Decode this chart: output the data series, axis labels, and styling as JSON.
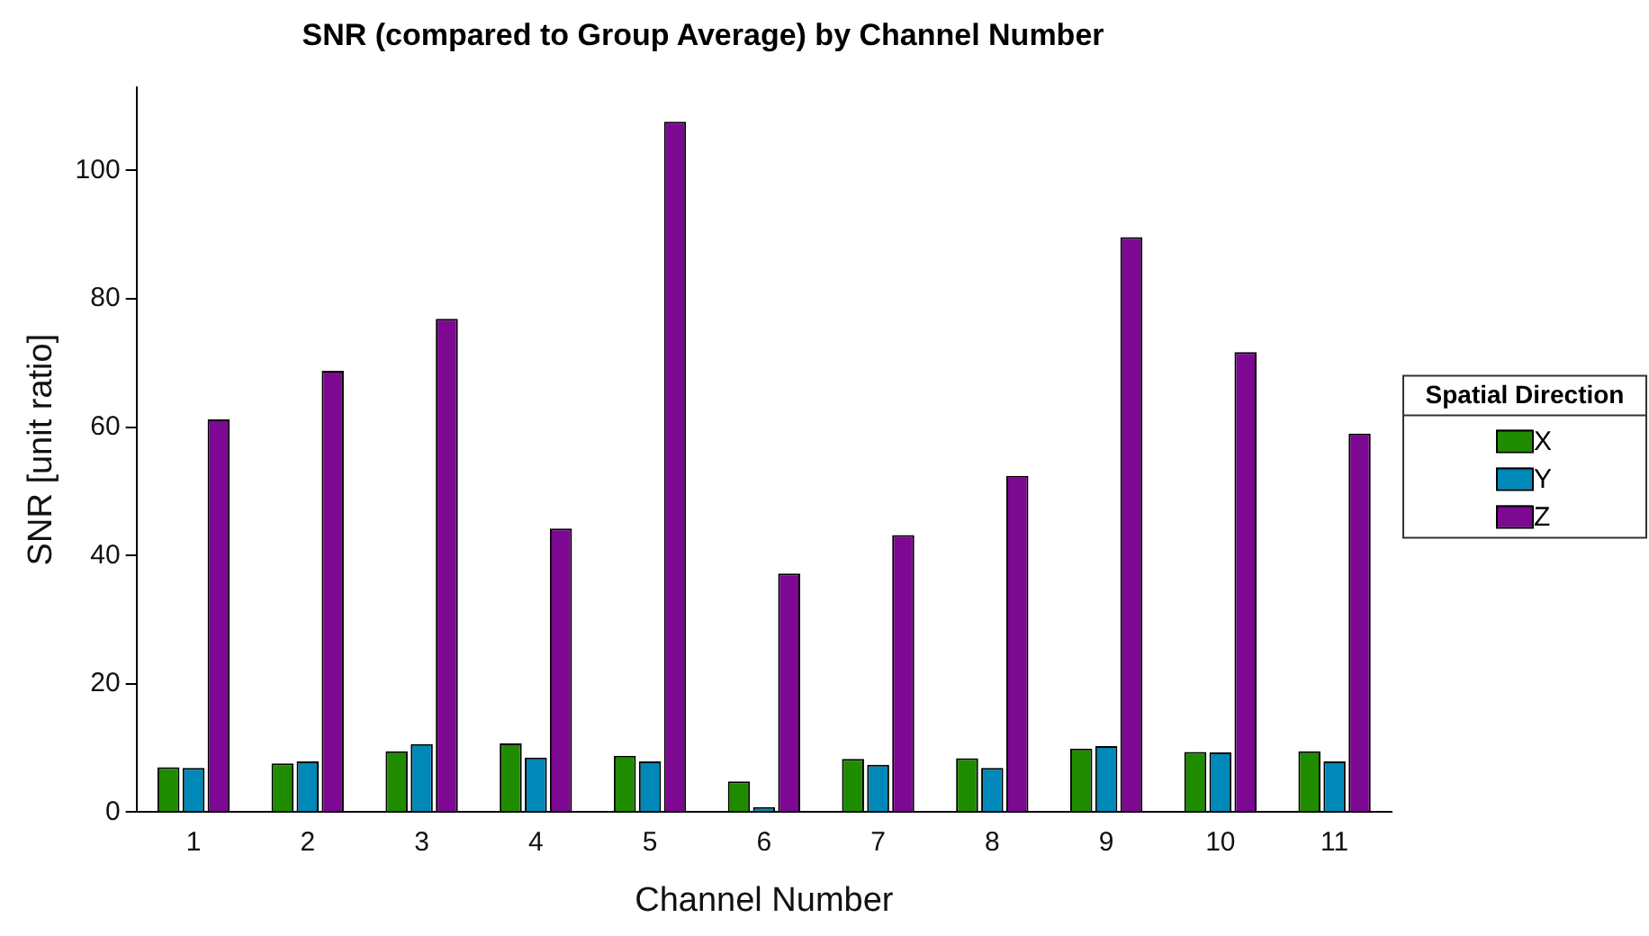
{
  "chart_data": {
    "type": "bar",
    "title": "SNR (compared to Group Average) by Channel Number",
    "xlabel": "Channel Number",
    "ylabel": "SNR [unit ratio]",
    "legend_title": "Spatial Direction",
    "categories": [
      "1",
      "2",
      "3",
      "4",
      "5",
      "6",
      "7",
      "8",
      "9",
      "10",
      "11"
    ],
    "series": [
      {
        "name": "X",
        "color": "#1f8c00",
        "values": [
          7.0,
          7.6,
          9.5,
          10.7,
          8.8,
          4.8,
          8.3,
          8.4,
          9.9,
          9.4,
          9.5
        ]
      },
      {
        "name": "Y",
        "color": "#0088b8",
        "values": [
          6.9,
          7.9,
          10.6,
          8.5,
          7.9,
          0.8,
          7.4,
          6.9,
          10.3,
          9.3,
          7.9
        ]
      },
      {
        "name": "Z",
        "color": "#7d0891",
        "values": [
          61.2,
          68.8,
          76.9,
          44.2,
          107.6,
          37.2,
          43.2,
          52.4,
          89.6,
          71.7,
          59.0
        ]
      }
    ],
    "ylim": [
      0,
      113
    ],
    "yticks": [
      0,
      20,
      40,
      60,
      80,
      100
    ],
    "grid": false,
    "legend": "right"
  }
}
